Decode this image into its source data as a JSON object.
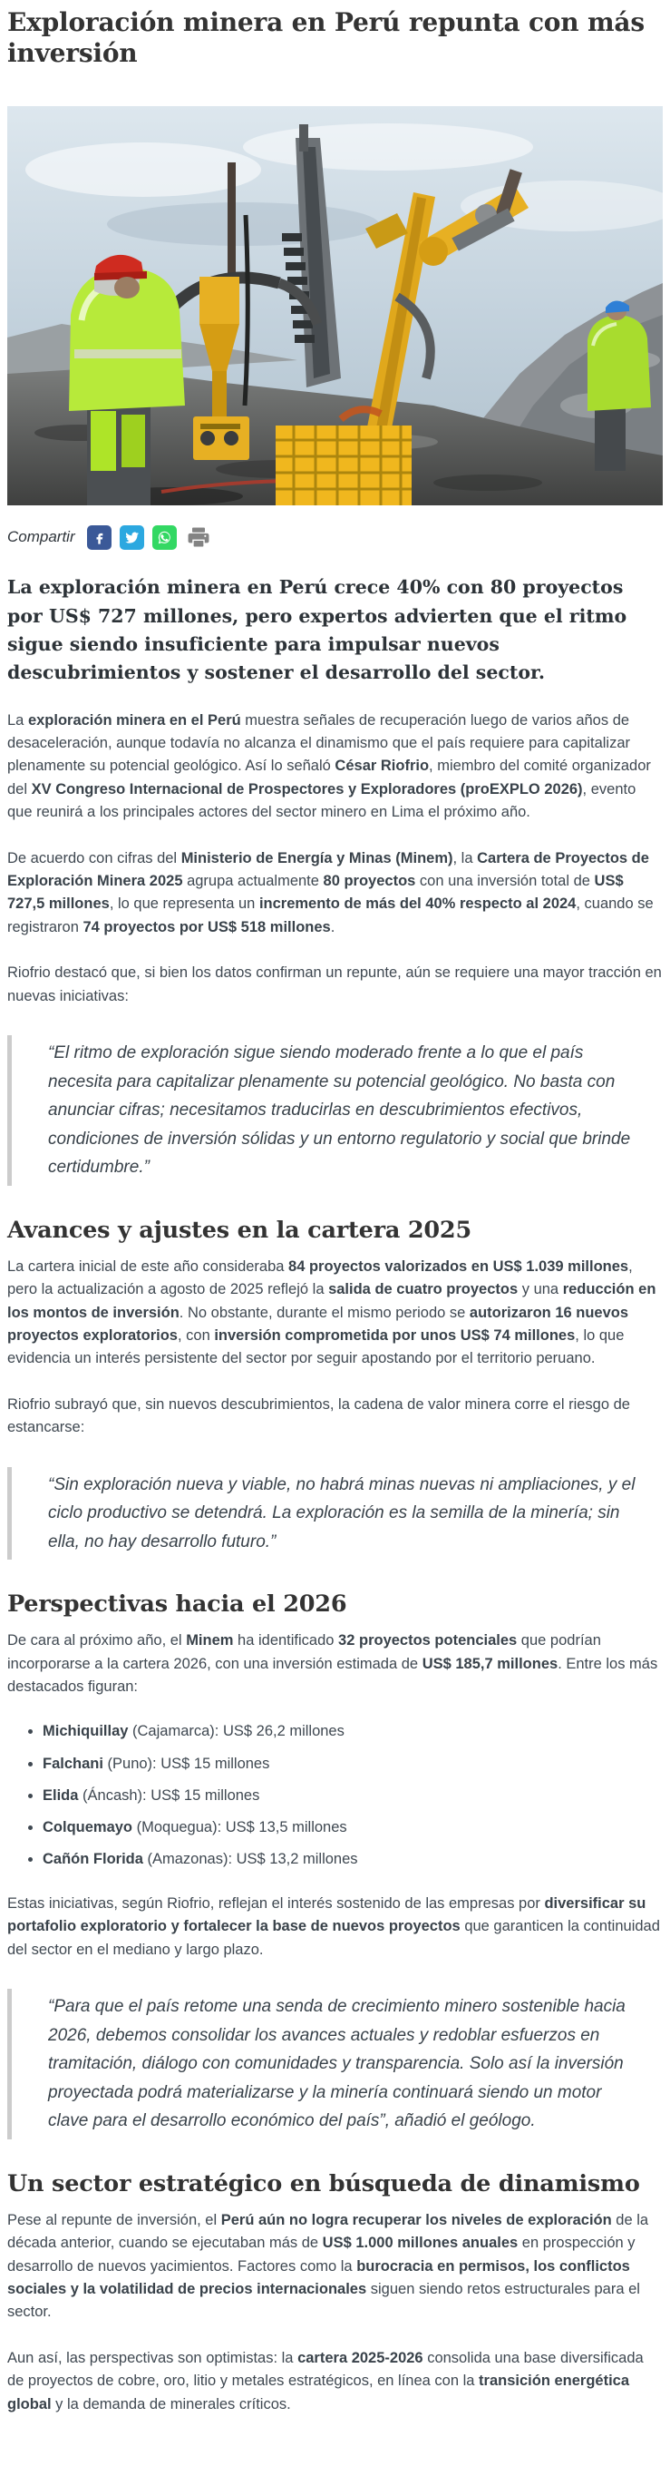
{
  "article": {
    "title": "Exploración minera en Perú repunta con más inversión",
    "share": {
      "label": "Compartir",
      "icons": [
        {
          "name": "facebook",
          "color": "#3b5998"
        },
        {
          "name": "twitter",
          "color": "#2ca8e0"
        },
        {
          "name": "whatsapp",
          "color": "#33d863"
        },
        {
          "name": "print",
          "color": "#838383"
        }
      ]
    },
    "lead": "La exploración minera en Perú crece 40% con 80 proyectos por US$ 727 millones, pero expertos advierten que el ritmo sigue siendo insuficiente para impulsar nuevos descubrimientos y sostener el desarrollo del sector.",
    "p1": [
      {
        "t": "La ",
        "b": false
      },
      {
        "t": "exploración minera en el Perú",
        "b": true
      },
      {
        "t": " muestra señales de recuperación luego de varios años de desaceleración, aunque todavía no alcanza el dinamismo que el país requiere para capitalizar plenamente su potencial geológico. Así lo señaló ",
        "b": false
      },
      {
        "t": "César Riofrio",
        "b": true
      },
      {
        "t": ", miembro del comité organizador del ",
        "b": false
      },
      {
        "t": "XV Congreso Internacional de Prospectores y Exploradores (proEXPLO 2026)",
        "b": true
      },
      {
        "t": ", evento que reunirá a los principales actores del sector minero en Lima el próximo año.",
        "b": false
      }
    ],
    "p2": [
      {
        "t": "De acuerdo con cifras del ",
        "b": false
      },
      {
        "t": "Ministerio de Energía y Minas (Minem)",
        "b": true
      },
      {
        "t": ", la ",
        "b": false
      },
      {
        "t": "Cartera de Proyectos de Exploración Minera 2025",
        "b": true
      },
      {
        "t": " agrupa actualmente ",
        "b": false
      },
      {
        "t": "80 proyectos",
        "b": true
      },
      {
        "t": " con una inversión total de ",
        "b": false
      },
      {
        "t": "US$ 727,5 millones",
        "b": true
      },
      {
        "t": ", lo que representa un ",
        "b": false
      },
      {
        "t": "incremento de más del 40% respecto al 2024",
        "b": true
      },
      {
        "t": ", cuando se registraron ",
        "b": false
      },
      {
        "t": "74 proyectos por US$ 518 millones",
        "b": true
      },
      {
        "t": ".",
        "b": false
      }
    ],
    "p3": [
      {
        "t": "Riofrio destacó que, si bien los datos confirman un repunte, aún se requiere una mayor tracción en nuevas iniciativas:",
        "b": false
      }
    ],
    "quote1": "“El ritmo de exploración sigue siendo moderado frente a lo que el país necesita para capitalizar plenamente su potencial geológico. No basta con anunciar cifras; necesitamos traducirlas en descubrimientos efectivos, condiciones de inversión sólidas y un entorno regulatorio y social que brinde certidumbre.”",
    "h2_1": "Avances y ajustes en la cartera 2025",
    "p4": [
      {
        "t": "La cartera inicial de este año consideraba ",
        "b": false
      },
      {
        "t": "84 proyectos valorizados en US$ 1.039 millones",
        "b": true
      },
      {
        "t": ", pero la actualización a agosto de 2025 reflejó la ",
        "b": false
      },
      {
        "t": "salida de cuatro proyectos",
        "b": true
      },
      {
        "t": " y una ",
        "b": false
      },
      {
        "t": "reducción en los montos de inversión",
        "b": true
      },
      {
        "t": ". No obstante, durante el mismo periodo se ",
        "b": false
      },
      {
        "t": "autorizaron 16 nuevos proyectos exploratorios",
        "b": true
      },
      {
        "t": ", con ",
        "b": false
      },
      {
        "t": "inversión comprometida por unos US$ 74 millones",
        "b": true
      },
      {
        "t": ", lo que evidencia un interés persistente del sector por seguir apostando por el territorio peruano.",
        "b": false
      }
    ],
    "p5": [
      {
        "t": "Riofrio subrayó que, sin nuevos descubrimientos, la cadena de valor minera corre el riesgo de estancarse:",
        "b": false
      }
    ],
    "quote2": "“Sin exploración nueva y viable, no habrá minas nuevas ni ampliaciones, y el ciclo productivo se detendrá. La exploración es la semilla de la minería; sin ella, no hay desarrollo futuro.”",
    "h2_2": "Perspectivas hacia el 2026",
    "p6": [
      {
        "t": "De cara al próximo año, el ",
        "b": false
      },
      {
        "t": "Minem",
        "b": true
      },
      {
        "t": " ha identificado ",
        "b": false
      },
      {
        "t": "32 proyectos potenciales",
        "b": true
      },
      {
        "t": " que podrían incorporarse a la cartera 2026, con una inversión estimada de ",
        "b": false
      },
      {
        "t": "US$ 185,7 millones",
        "b": true
      },
      {
        "t": ". Entre los más destacados figuran:",
        "b": false
      }
    ],
    "projects": [
      {
        "segments": [
          {
            "t": "Michiquillay",
            "b": true
          },
          {
            "t": " (Cajamarca): US$ 26,2 millones",
            "b": false
          }
        ]
      },
      {
        "segments": [
          {
            "t": "Falchani",
            "b": true
          },
          {
            "t": " (Puno): US$ 15 millones",
            "b": false
          }
        ]
      },
      {
        "segments": [
          {
            "t": "Elida",
            "b": true
          },
          {
            "t": " (Áncash): US$ 15 millones",
            "b": false
          }
        ]
      },
      {
        "segments": [
          {
            "t": "Colquemayo",
            "b": true
          },
          {
            "t": " (Moquegua): US$ 13,5 millones",
            "b": false
          }
        ]
      },
      {
        "segments": [
          {
            "t": "Cañón Florida",
            "b": true
          },
          {
            "t": " (Amazonas): US$ 13,2 millones",
            "b": false
          }
        ]
      }
    ],
    "p7": [
      {
        "t": "Estas iniciativas, según Riofrio, reflejan el interés sostenido de las empresas por ",
        "b": false
      },
      {
        "t": "diversificar su portafolio exploratorio y fortalecer la base de nuevos proyectos",
        "b": true
      },
      {
        "t": " que garanticen la continuidad del sector en el mediano y largo plazo.",
        "b": false
      }
    ],
    "quote3": "“Para que el país retome una senda de crecimiento minero sostenible hacia 2026, debemos consolidar los avances actuales y redoblar esfuerzos en tramitación, diálogo con comunidades y transparencia. Solo así la inversión proyectada podrá materializarse y la minería continuará siendo un motor clave para el desarrollo económico del país”, añadió el geólogo.",
    "h2_3": "Un sector estratégico en búsqueda de dinamismo",
    "p8": [
      {
        "t": "Pese al repunte de inversión, el ",
        "b": false
      },
      {
        "t": "Perú aún no logra recuperar los niveles de exploración",
        "b": true
      },
      {
        "t": " de la década anterior, cuando se ejecutaban más de ",
        "b": false
      },
      {
        "t": "US$ 1.000 millones anuales",
        "b": true
      },
      {
        "t": " en prospección y desarrollo de nuevos yacimientos. Factores como la ",
        "b": false
      },
      {
        "t": "burocracia en permisos, los conflictos sociales y la volatilidad de precios internacionales",
        "b": true
      },
      {
        "t": " siguen siendo retos estructurales para el sector.",
        "b": false
      }
    ],
    "p9": [
      {
        "t": "Aun así, las perspectivas son optimistas: la ",
        "b": false
      },
      {
        "t": "cartera 2025-2026",
        "b": true
      },
      {
        "t": " consolida una base diversificada de proyectos de cobre, oro, litio y metales estratégicos, en línea con la ",
        "b": false
      },
      {
        "t": "transición energética global",
        "b": true
      },
      {
        "t": " y la demanda de minerales críticos.",
        "b": false
      }
    ]
  }
}
